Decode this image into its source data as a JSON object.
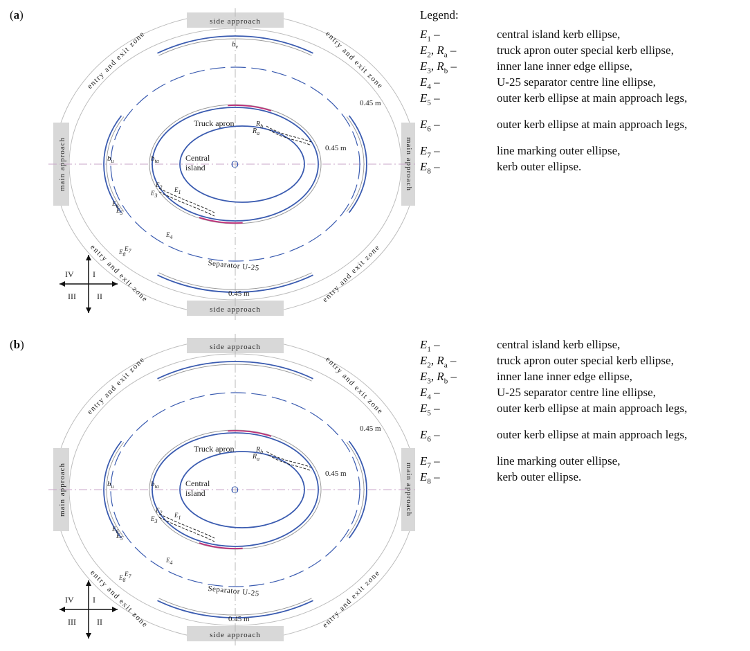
{
  "panels": [
    {
      "label": "a",
      "legend_title": "Legend:",
      "legend": [
        {
          "key": "E1 –",
          "sym": "E",
          "sub": "1",
          "desc": "central island kerb ellipse,"
        },
        {
          "key": "E2, Ra –",
          "sym": "E",
          "sub": "2",
          "extra": "R",
          "extra_sub": "a",
          "desc": "truck apron outer special kerb ellipse,"
        },
        {
          "key": "E3, Rb –",
          "sym": "E",
          "sub": "3",
          "extra": "R",
          "extra_sub": "b",
          "desc": "inner lane inner edge ellipse,"
        },
        {
          "key": "E4 –",
          "sym": "E",
          "sub": "4",
          "desc": "U-25 separator centre line ellipse,"
        },
        {
          "key": "E5 –",
          "sym": "E",
          "sub": "5",
          "desc": "outer kerb ellipse at main approach legs,"
        },
        {
          "key": "E6 –",
          "sym": "E",
          "sub": "6",
          "desc": "outer kerb ellipse at main approach legs,"
        },
        {
          "key": "E7 –",
          "sym": "E",
          "sub": "7",
          "desc": "line marking outer ellipse,"
        },
        {
          "key": "E8 –",
          "sym": "E",
          "sub": "8",
          "desc": "kerb outer ellipse."
        }
      ]
    },
    {
      "label": "b",
      "legend_title": "",
      "legend": [
        {
          "key": "E1 –",
          "sym": "E",
          "sub": "1",
          "desc": "central island kerb ellipse,"
        },
        {
          "key": "E2, Ra –",
          "sym": "E",
          "sub": "2",
          "extra": "R",
          "extra_sub": "a",
          "desc": "truck apron outer special kerb ellipse,"
        },
        {
          "key": "E3, Rb –",
          "sym": "E",
          "sub": "3",
          "extra": "R",
          "extra_sub": "b",
          "desc": "inner lane inner edge ellipse,"
        },
        {
          "key": "E4 –",
          "sym": "E",
          "sub": "4",
          "desc": "U-25 separator centre line ellipse,"
        },
        {
          "key": "E5 –",
          "sym": "E",
          "sub": "5",
          "desc": "outer kerb ellipse at main approach legs,"
        },
        {
          "key": "E6 –",
          "sym": "E",
          "sub": "6",
          "desc": "outer kerb ellipse at main approach legs,"
        },
        {
          "key": "E7 –",
          "sym": "E",
          "sub": "7",
          "desc": "line marking outer ellipse,"
        },
        {
          "key": "E8 –",
          "sym": "E",
          "sub": "8",
          "desc": "kerb outer ellipse."
        }
      ]
    }
  ],
  "diagram": {
    "side_approach": "side approach",
    "main_approach": "main approach",
    "entry_exit_zone": "entry and exit zone",
    "truck_apron": "Truck apron",
    "central_island_1": "Central",
    "central_island_2": "island",
    "centre_mark": "O",
    "separator": "Separator U-25",
    "width_label": "0.45 m",
    "bu": "b",
    "bu_sub": "u",
    "bv": "b",
    "bv_sub": "v",
    "bta": "b",
    "bta_sub": "ta",
    "ellipse_labels": [
      "E1",
      "E2",
      "E3",
      "E4",
      "E5",
      "E6",
      "E7",
      "E8"
    ],
    "ra": "R",
    "ra_sub": "a",
    "rb": "R",
    "rb_sub": "b",
    "quadrants": [
      "I",
      "II",
      "III",
      "IV"
    ]
  },
  "colors": {
    "kerb_blue": "#3a5bb0",
    "grey_line": "#9a9a9a",
    "magenta": "#c0307a",
    "band_grey": "#d8d8d8",
    "axis_pink": "#c9a6c9"
  }
}
